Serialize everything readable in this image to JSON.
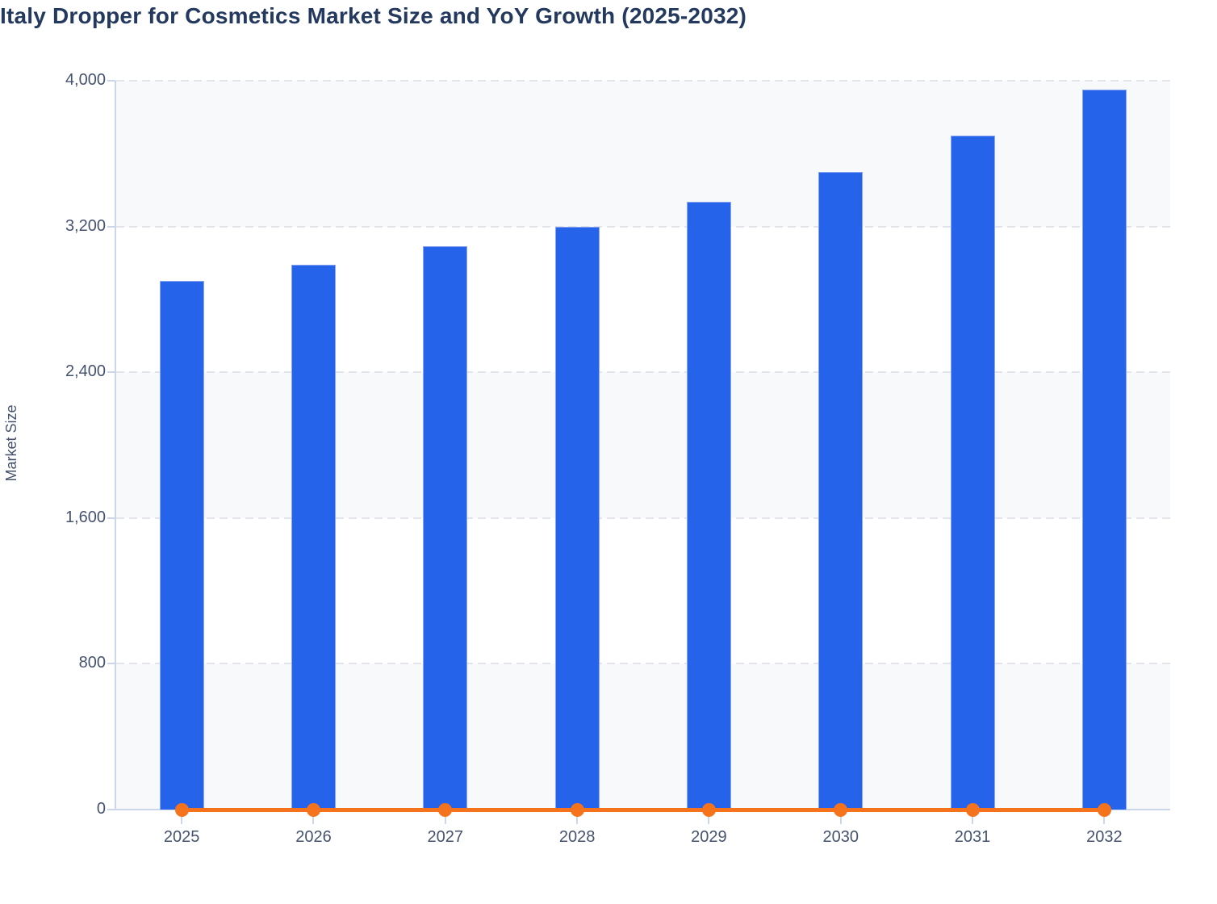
{
  "header": {
    "title": "Italy Dropper for Cosmetics Market Size and YoY Growth (2025-2032)",
    "title_color": "#24395e"
  },
  "chart_data": {
    "type": "bar",
    "title": "Italy Dropper for Cosmetics Market Size and YoY Growth (2025-2032)",
    "categories": [
      "2025",
      "2026",
      "2027",
      "2028",
      "2029",
      "2030",
      "2031",
      "2032"
    ],
    "series": [
      {
        "name": "Market Size",
        "type": "bar",
        "color": "#2663eb",
        "values": [
          2900,
          2990,
          3090,
          3200,
          3335,
          3500,
          3700,
          3950
        ]
      },
      {
        "name": "YoY Growth",
        "type": "line",
        "color": "#f4731c",
        "marker": "circle",
        "values": [
          0,
          0,
          0,
          0,
          0,
          0,
          0,
          0
        ]
      }
    ],
    "xlabel": "",
    "ylabel": "Market Size",
    "ylim": [
      0,
      4000
    ],
    "yticks": [
      0,
      800,
      1600,
      2400,
      3200,
      4000
    ],
    "ytick_labels": [
      "0",
      "800",
      "1,600",
      "2,400",
      "3,200",
      "4,000"
    ],
    "grid": "horizontal-dashed",
    "legend": "none",
    "plot_bands": "alternating-from-top",
    "colors": {
      "band_fill": "#f8f9fb",
      "gridline": "#e2e4e9",
      "axis": "#ccd6ea",
      "axis_text": "#46536e",
      "bar_border": "#8ba6f0",
      "background": "#ffffff"
    }
  }
}
